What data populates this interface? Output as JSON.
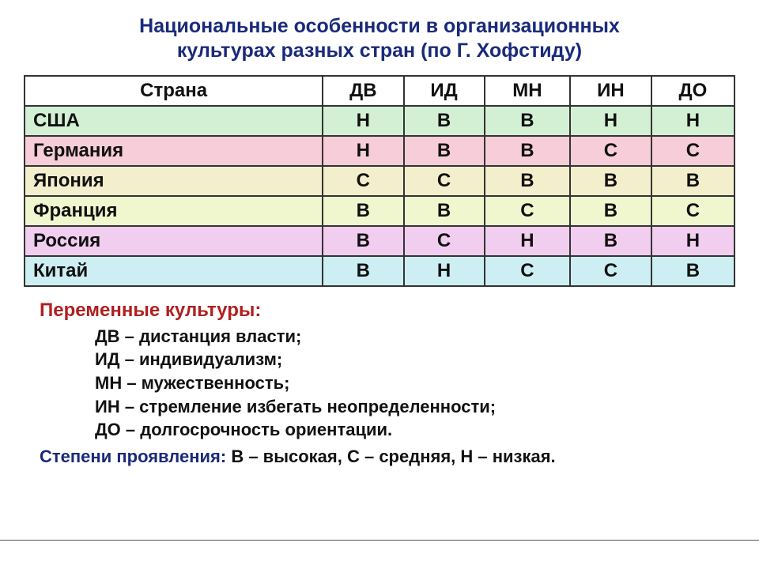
{
  "title_line1": "Национальные особенности в организационных",
  "title_line2": "культурах разных стран (по Г. Хофстиду)",
  "table": {
    "header_bg": "#ffffff",
    "columns": [
      "Страна",
      "ДВ",
      "ИД",
      "МН",
      "ИН",
      "ДО"
    ],
    "rows": [
      {
        "country": "США",
        "vals": [
          "Н",
          "В",
          "В",
          "Н",
          "Н"
        ],
        "bg": "#d4f0d4"
      },
      {
        "country": "Германия",
        "vals": [
          "Н",
          "В",
          "В",
          "С",
          "С"
        ],
        "bg": "#f6cdd9"
      },
      {
        "country": "Япония",
        "vals": [
          "С",
          "С",
          "В",
          "В",
          "В"
        ],
        "bg": "#f3eecb"
      },
      {
        "country": "Франция",
        "vals": [
          "В",
          "В",
          "С",
          "В",
          "С"
        ],
        "bg": "#f0f7cf"
      },
      {
        "country": "Россия",
        "vals": [
          "В",
          "С",
          "Н",
          "В",
          "Н"
        ],
        "bg": "#f1cdf0"
      },
      {
        "country": "Китай",
        "vals": [
          "В",
          "Н",
          "С",
          "С",
          "В"
        ],
        "bg": "#cdeef2"
      }
    ]
  },
  "legend": {
    "title": "Переменные культуры:",
    "items": [
      "ДВ – дистанция власти;",
      "ИД – индивидуализм;",
      "МН – мужественность;",
      "ИН – стремление избегать неопределенности;",
      "ДО – долгосрочность ориентации."
    ]
  },
  "degree": {
    "label": "Степени проявления:",
    "values": "  В – высокая, С – средняя,  Н – низкая."
  }
}
